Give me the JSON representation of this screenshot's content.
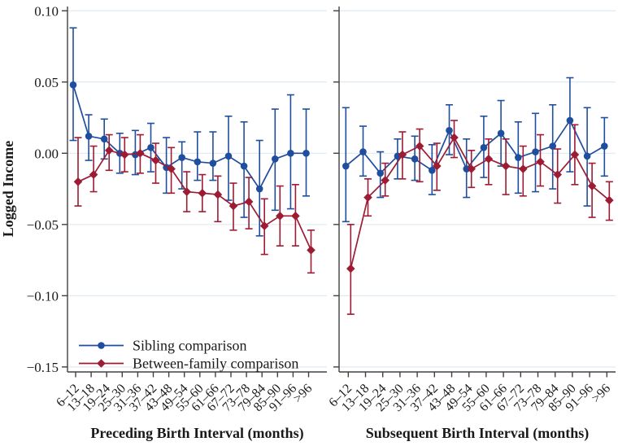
{
  "figure": {
    "background": "#ffffff",
    "ylabel": "Logged Income",
    "colors": {
      "sibling": "#1f4e9e",
      "between_family": "#9d1b33",
      "gridline": "#e0eaf2",
      "axis": "#404040",
      "text": "#1a1a1a"
    },
    "legend": [
      {
        "label": "Sibling comparison",
        "marker": "circle",
        "color": "#1f4e9e"
      },
      {
        "label": "Between-family comparison",
        "marker": "diamond",
        "color": "#9d1b33"
      }
    ]
  },
  "chart_data": [
    {
      "type": "line",
      "panel": "left",
      "xlabel": "Preceding Birth Interval (months)",
      "ylabel": "Logged Income",
      "ylim": [
        -0.1535,
        0.103
      ],
      "yticks": [
        0.1,
        0.05,
        0.0,
        -0.05,
        -0.1,
        -0.15
      ],
      "ytick_labels": [
        "0.10",
        "0.05",
        "0.00",
        "−0.05",
        "−0.10",
        "−0.15"
      ],
      "grid": true,
      "categories": [
        "6–12",
        "13–18",
        "19–24",
        "25–30",
        "31–36",
        "37–42",
        "43–48",
        "49–54",
        "55–60",
        "61–66",
        "67–72",
        "73–78",
        "79–84",
        "85–90",
        "91–96",
        ">96"
      ],
      "series": [
        {
          "name": "Sibling comparison",
          "marker": "circle",
          "color": "#1f4e9e",
          "values": [
            0.048,
            0.012,
            0.01,
            0.0,
            -0.001,
            0.004,
            -0.01,
            -0.003,
            -0.006,
            -0.007,
            -0.002,
            -0.009,
            -0.025,
            -0.004,
            0.0,
            0.0
          ],
          "ci_high": [
            0.088,
            0.027,
            0.024,
            0.014,
            0.016,
            0.021,
            0.011,
            0.008,
            0.015,
            0.015,
            0.026,
            0.022,
            0.009,
            0.031,
            0.041,
            0.031
          ],
          "ci_low": [
            0.009,
            -0.005,
            -0.004,
            -0.014,
            -0.015,
            -0.013,
            -0.028,
            -0.025,
            -0.019,
            -0.019,
            -0.033,
            -0.045,
            -0.058,
            -0.04,
            -0.039,
            -0.03
          ]
        },
        {
          "name": "Between-family comparison",
          "marker": "diamond",
          "color": "#9d1b33",
          "values": [
            -0.02,
            -0.015,
            0.002,
            -0.001,
            0.0,
            -0.005,
            -0.011,
            -0.027,
            -0.028,
            -0.029,
            -0.037,
            -0.034,
            -0.051,
            -0.044,
            -0.044,
            -0.068
          ],
          "ci_high": [
            0.011,
            0.005,
            0.013,
            0.011,
            0.013,
            0.007,
            0.004,
            -0.013,
            -0.015,
            -0.016,
            -0.021,
            -0.017,
            -0.032,
            -0.023,
            -0.022,
            -0.054
          ],
          "ci_low": [
            -0.037,
            -0.027,
            -0.012,
            -0.013,
            -0.014,
            -0.021,
            -0.028,
            -0.041,
            -0.041,
            -0.048,
            -0.054,
            -0.053,
            -0.071,
            -0.065,
            -0.065,
            -0.084
          ]
        }
      ]
    },
    {
      "type": "line",
      "panel": "right",
      "xlabel": "Subsequent Birth Interval (months)",
      "ylabel": "",
      "ylim": [
        -0.1535,
        0.103
      ],
      "yticks": [
        0.1,
        0.05,
        0.0,
        -0.05,
        -0.1,
        -0.15
      ],
      "ytick_labels": [],
      "grid": true,
      "categories": [
        "6–12",
        "13–18",
        "19–24",
        "25–30",
        "31–36",
        "37–42",
        "43–48",
        "49–54",
        "55–60",
        "61–66",
        "67–72",
        "73–78",
        "79–84",
        "85–90",
        "91–96",
        ">96"
      ],
      "series": [
        {
          "name": "Sibling comparison",
          "marker": "circle",
          "color": "#1f4e9e",
          "values": [
            -0.009,
            0.001,
            -0.014,
            -0.002,
            -0.004,
            -0.012,
            0.016,
            -0.011,
            0.004,
            0.014,
            -0.003,
            0.001,
            0.005,
            0.023,
            -0.002,
            0.005
          ],
          "ci_high": [
            0.032,
            0.019,
            0.001,
            0.01,
            0.012,
            0.006,
            0.034,
            0.01,
            0.026,
            0.037,
            0.022,
            0.028,
            0.034,
            0.053,
            0.032,
            0.025
          ],
          "ci_low": [
            -0.048,
            -0.016,
            -0.031,
            -0.018,
            -0.019,
            -0.029,
            -0.001,
            -0.031,
            -0.017,
            -0.009,
            -0.028,
            -0.027,
            -0.025,
            -0.013,
            -0.037,
            -0.016
          ]
        },
        {
          "name": "Between-family comparison",
          "marker": "diamond",
          "color": "#9d1b33",
          "values": [
            -0.081,
            -0.031,
            -0.019,
            -0.001,
            0.005,
            -0.009,
            0.011,
            -0.011,
            -0.004,
            -0.009,
            -0.011,
            -0.006,
            -0.015,
            -0.001,
            -0.023,
            -0.033
          ],
          "ci_high": [
            -0.05,
            -0.018,
            -0.007,
            0.015,
            0.017,
            0.007,
            0.023,
            0.002,
            0.01,
            0.01,
            0.005,
            0.013,
            0.003,
            0.02,
            -0.007,
            -0.02
          ],
          "ci_low": [
            -0.113,
            -0.044,
            -0.03,
            -0.018,
            -0.02,
            -0.026,
            -0.003,
            -0.024,
            -0.022,
            -0.029,
            -0.03,
            -0.023,
            -0.035,
            -0.022,
            -0.045,
            -0.047
          ]
        }
      ]
    }
  ]
}
